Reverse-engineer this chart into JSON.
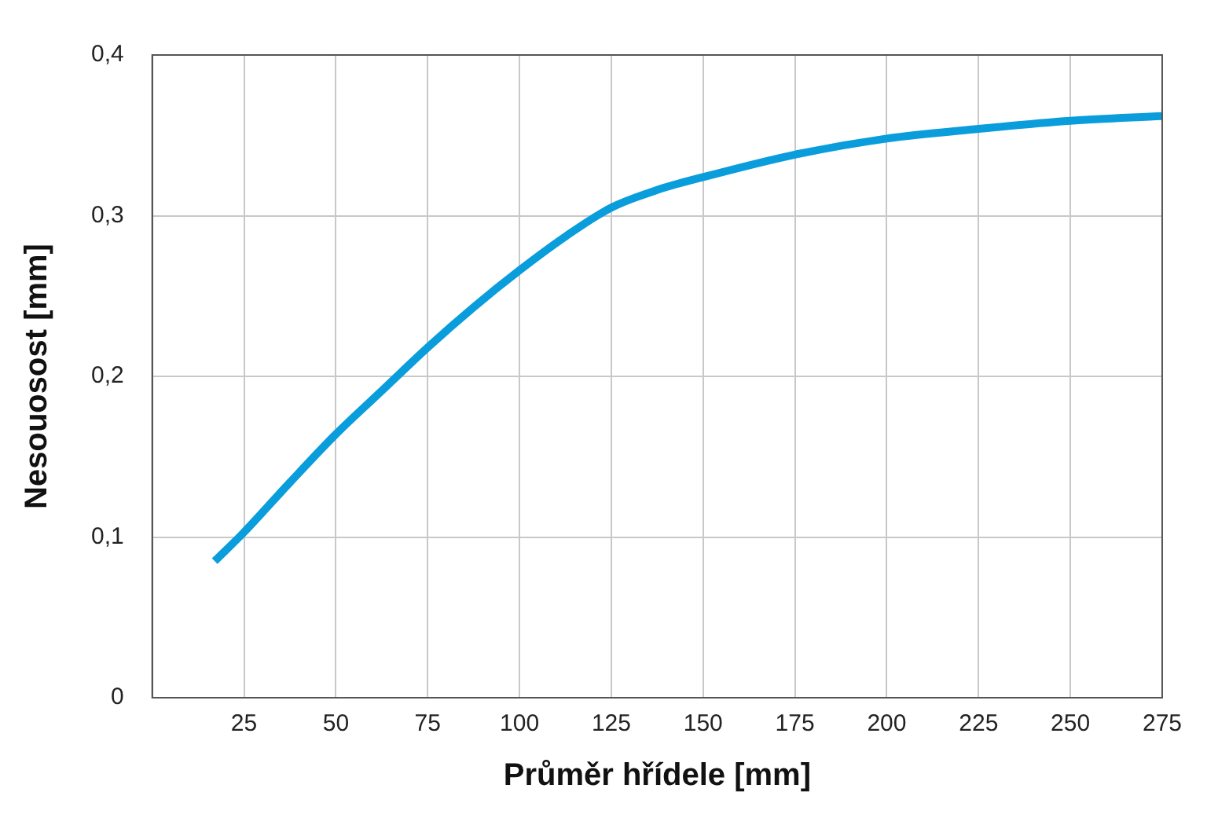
{
  "chart_data": {
    "type": "line",
    "xlabel": "Průměr hřídele [mm]",
    "ylabel": "Nesouosost [mm]",
    "series": [
      {
        "color": "#0a9ddc",
        "x": [
          17,
          25,
          37.5,
          50,
          62.5,
          75,
          87.5,
          100,
          112.5,
          125,
          137.5,
          150,
          175,
          200,
          225,
          250,
          275
        ],
        "values": [
          0.085,
          0.103,
          0.134,
          0.164,
          0.191,
          0.218,
          0.243,
          0.266,
          0.287,
          0.305,
          0.316,
          0.324,
          0.338,
          0.348,
          0.354,
          0.359,
          0.362
        ]
      }
    ],
    "xlim": [
      0,
      275
    ],
    "xticks": [
      25,
      50,
      75,
      100,
      125,
      150,
      175,
      200,
      225,
      250,
      275
    ],
    "ylim": [
      0,
      0.4
    ],
    "yticks": [
      0,
      {
        "value": 0.1,
        "label": "0,1"
      },
      {
        "value": 0.2,
        "label": "0,2"
      },
      {
        "value": 0.3,
        "label": "0,3"
      },
      {
        "value": 0.4,
        "label": "0,4"
      }
    ],
    "grid": true,
    "marker": "none",
    "line_style": "solid",
    "legend": false
  }
}
